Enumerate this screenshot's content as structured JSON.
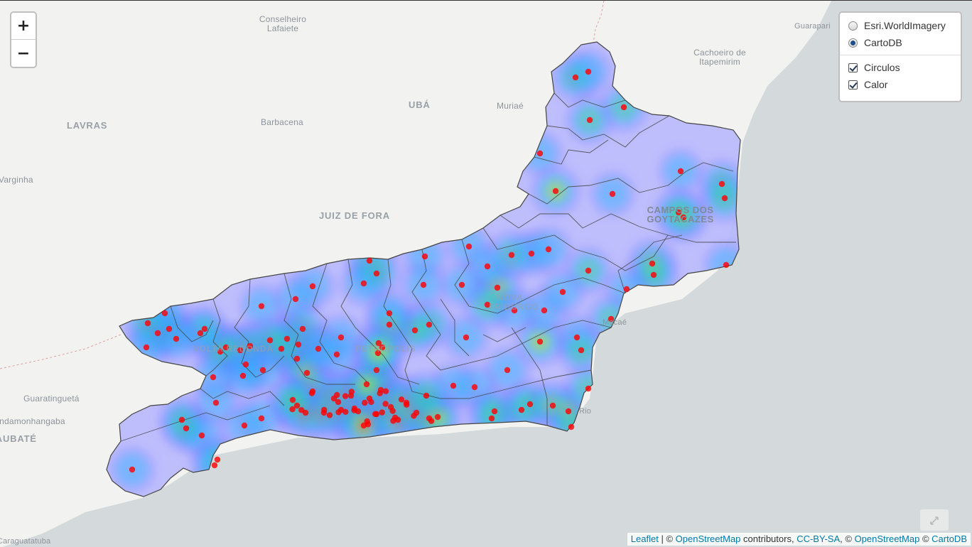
{
  "map": {
    "colors": {
      "sea": "#d4dadc",
      "land": "#f2f2f0",
      "state_fill": "#b5b5ff",
      "border": "#444444"
    },
    "places": [
      {
        "text": "Conselheiro Lafaiete",
        "style": "normal"
      },
      {
        "text": "LAVRAS",
        "style": "city"
      },
      {
        "text": "Barbacena",
        "style": "normal"
      },
      {
        "text": "UBÁ",
        "style": "city"
      },
      {
        "text": "Muriaé",
        "style": "normal"
      },
      {
        "text": "Cachoeiro de Itapemirim",
        "style": "normal"
      },
      {
        "text": "Guarapari",
        "style": "normal"
      },
      {
        "text": "Varginha",
        "style": "normal"
      },
      {
        "text": "JUIZ DE FORA",
        "style": "city"
      },
      {
        "text": "CAMPOS DOS GOYTACAZES",
        "style": "big"
      },
      {
        "text": "Guaratinguetá",
        "style": "normal"
      },
      {
        "text": "Pindamonhangaba",
        "style": "normal"
      },
      {
        "text": "TAUBATÉ",
        "style": "city"
      },
      {
        "text": "Caraguatatuba",
        "style": "normal"
      },
      {
        "text": "Macaé",
        "style": "normal"
      },
      {
        "text": "Rio",
        "style": "normal"
      },
      {
        "text": "PETRÓPOLIS",
        "style": "city"
      },
      {
        "text": "VOLTA REDONDA",
        "style": "city"
      },
      {
        "text": "NOVA FRIBURGO",
        "style": "city"
      }
    ],
    "heat_points": 160
  },
  "controls": {
    "zoom_in": "+",
    "zoom_out": "−",
    "base_layers": [
      {
        "label": "Esri.WorldImagery",
        "selected": false
      },
      {
        "label": "CartoDB",
        "selected": true
      }
    ],
    "overlays": [
      {
        "label": "Circulos",
        "checked": true
      },
      {
        "label": "Calor",
        "checked": true
      }
    ]
  },
  "attribution": {
    "leaflet": "Leaflet",
    "sep1": " | © ",
    "osm1": "OpenStreetMap",
    "contrib": " contributors, ",
    "ccbysa": "CC-BY-SA",
    "sep2": ", © ",
    "osm2": "OpenStreetMap",
    "sep3": " © ",
    "carto": "CartoDB"
  }
}
